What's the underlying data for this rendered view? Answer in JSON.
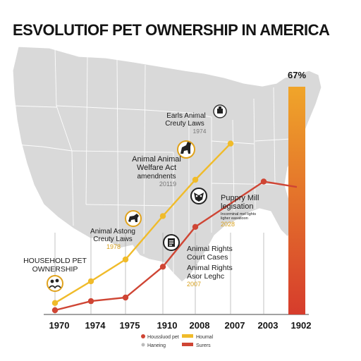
{
  "title": "ESVOLUTIOF PET OWNERSHIP IN AMERICA",
  "chart_data": {
    "type": "line",
    "title": "ESVOLUTIOF PET OWNERSHIP IN AMERICA",
    "categories": [
      "1970",
      "1974",
      "1975",
      "1910",
      "2008",
      "2007",
      "2003",
      "1902"
    ],
    "series": [
      {
        "name": "Houmal",
        "color": "#f0bb2a",
        "values": [
          4,
          16,
          28,
          52,
          72,
          92,
          null,
          null
        ]
      },
      {
        "name": "Houssluod pet",
        "color": "#cf4534",
        "values": [
          0,
          5,
          7,
          24,
          46,
          null,
          71,
          68
        ]
      }
    ],
    "bar": {
      "label": "67%",
      "color_top": "#f0a52a",
      "color_bottom": "#d63c2c",
      "value": 100
    },
    "ylim": [
      0,
      100
    ],
    "annotations": [
      {
        "id": "household",
        "lines": [
          "HOUSEHOLD PET",
          "OWNERSHIP"
        ],
        "year": "",
        "icon": "people-pets-icon"
      },
      {
        "id": "asting",
        "lines": [
          "Animal Astong",
          "Creuty Laws"
        ],
        "year": "1978",
        "icon": "dog-icon"
      },
      {
        "id": "welfare",
        "lines": [
          "Animal Animal",
          "Welfare Act",
          "amendnents"
        ],
        "year": "20119",
        "icon": "dog-icon"
      },
      {
        "id": "early",
        "lines": [
          "Earls Animal",
          "Creuty Laws"
        ],
        "year": "1974",
        "icon": "cat-bowl-icon"
      },
      {
        "id": "puppy",
        "lines": [
          "Puppry Mill",
          "legisation"
        ],
        "sublines": [
          "Incorminal mel lights",
          "ligher easatioon"
        ],
        "year": "2028",
        "icon": "owl-icon"
      },
      {
        "id": "court",
        "lines": [
          "Animal Rights",
          "Court Cases"
        ],
        "year": "",
        "icon": "document-icon"
      },
      {
        "id": "asgr",
        "lines": [
          "Animal Rights",
          "Asor Leghc"
        ],
        "year": "2007",
        "icon": ""
      }
    ],
    "legend": [
      {
        "label": "Houssluod pet",
        "marker": "dot",
        "color": "#cf4534"
      },
      {
        "label": "Houmal",
        "marker": "bar",
        "color": "#f0bb2a"
      },
      {
        "label": "Haneing",
        "marker": "dot",
        "color": "#bbbbbb"
      },
      {
        "label": "Surers",
        "marker": "bar",
        "color": "#cf4534"
      }
    ]
  }
}
